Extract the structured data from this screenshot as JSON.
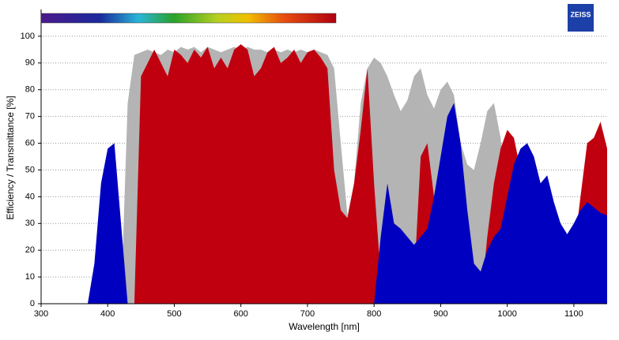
{
  "chart_data": {
    "type": "area",
    "logo": "ZEISS",
    "xlabel": "Wavelength [nm]",
    "ylabel": "Efficiency / Transmittance [%]",
    "x": [
      300,
      310,
      320,
      330,
      340,
      350,
      360,
      370,
      380,
      390,
      400,
      410,
      420,
      430,
      440,
      450,
      460,
      470,
      480,
      490,
      500,
      510,
      520,
      530,
      540,
      550,
      560,
      570,
      580,
      590,
      600,
      610,
      620,
      630,
      640,
      650,
      660,
      670,
      680,
      690,
      700,
      710,
      720,
      730,
      740,
      750,
      760,
      770,
      780,
      790,
      800,
      810,
      820,
      830,
      840,
      850,
      860,
      870,
      880,
      890,
      900,
      910,
      920,
      930,
      940,
      950,
      960,
      970,
      980,
      990,
      1000,
      1010,
      1020,
      1030,
      1040,
      1050,
      1060,
      1070,
      1080,
      1090,
      1100,
      1110,
      1120,
      1130,
      1140,
      1150
    ],
    "series": [
      {
        "color": "#b4b4b4",
        "values": [
          0,
          0,
          0,
          0,
          0,
          0,
          0,
          0,
          0,
          0,
          0,
          0,
          0,
          75,
          93,
          94,
          95,
          94,
          93,
          95,
          94,
          96,
          95,
          96,
          94,
          96,
          95,
          94,
          95,
          96,
          95,
          96,
          95,
          95,
          94,
          95,
          94,
          95,
          94,
          95,
          94,
          95,
          94,
          93,
          88,
          60,
          33,
          45,
          75,
          88,
          92,
          90,
          85,
          78,
          72,
          76,
          85,
          88,
          78,
          73,
          80,
          83,
          78,
          60,
          52,
          50,
          60,
          72,
          75,
          62,
          40,
          15,
          15,
          15,
          15,
          15,
          15,
          15,
          15,
          15,
          15,
          15,
          15,
          15,
          15,
          15
        ]
      },
      {
        "color": "#c0000f",
        "values": [
          0,
          0,
          0,
          0,
          0,
          0,
          0,
          0,
          0,
          0,
          0,
          0,
          0,
          0,
          0,
          85,
          90,
          95,
          90,
          85,
          95,
          93,
          90,
          95,
          92,
          96,
          88,
          92,
          88,
          95,
          97,
          95,
          85,
          88,
          94,
          96,
          90,
          92,
          95,
          90,
          94,
          95,
          92,
          88,
          50,
          35,
          32,
          45,
          65,
          88,
          45,
          10,
          15,
          18,
          17,
          10,
          8,
          55,
          60,
          40,
          10,
          5,
          0,
          0,
          0,
          0,
          0,
          25,
          45,
          58,
          65,
          62,
          50,
          40,
          20,
          20,
          20,
          20,
          20,
          20,
          20,
          40,
          60,
          62,
          68,
          58
        ]
      },
      {
        "color": "#0000c0",
        "values": [
          0,
          0,
          0,
          0,
          0,
          0,
          0,
          0,
          15,
          45,
          58,
          60,
          30,
          0,
          0,
          0,
          0,
          0,
          0,
          0,
          0,
          0,
          0,
          0,
          0,
          0,
          0,
          0,
          0,
          0,
          0,
          0,
          0,
          0,
          0,
          0,
          0,
          0,
          0,
          0,
          0,
          0,
          0,
          0,
          0,
          0,
          0,
          0,
          0,
          0,
          0,
          25,
          45,
          30,
          28,
          25,
          22,
          25,
          28,
          40,
          55,
          70,
          75,
          60,
          35,
          15,
          12,
          20,
          25,
          28,
          40,
          52,
          58,
          60,
          55,
          45,
          48,
          38,
          30,
          26,
          30,
          35,
          38,
          36,
          34,
          33
        ]
      }
    ],
    "xlim": [
      300,
      1150
    ],
    "ylim": [
      0,
      110
    ],
    "xticks": [
      300,
      400,
      500,
      600,
      700,
      800,
      900,
      1000,
      1100
    ],
    "yticks": [
      0,
      10,
      20,
      30,
      40,
      50,
      60,
      70,
      80,
      90,
      100
    ],
    "grid": true
  }
}
